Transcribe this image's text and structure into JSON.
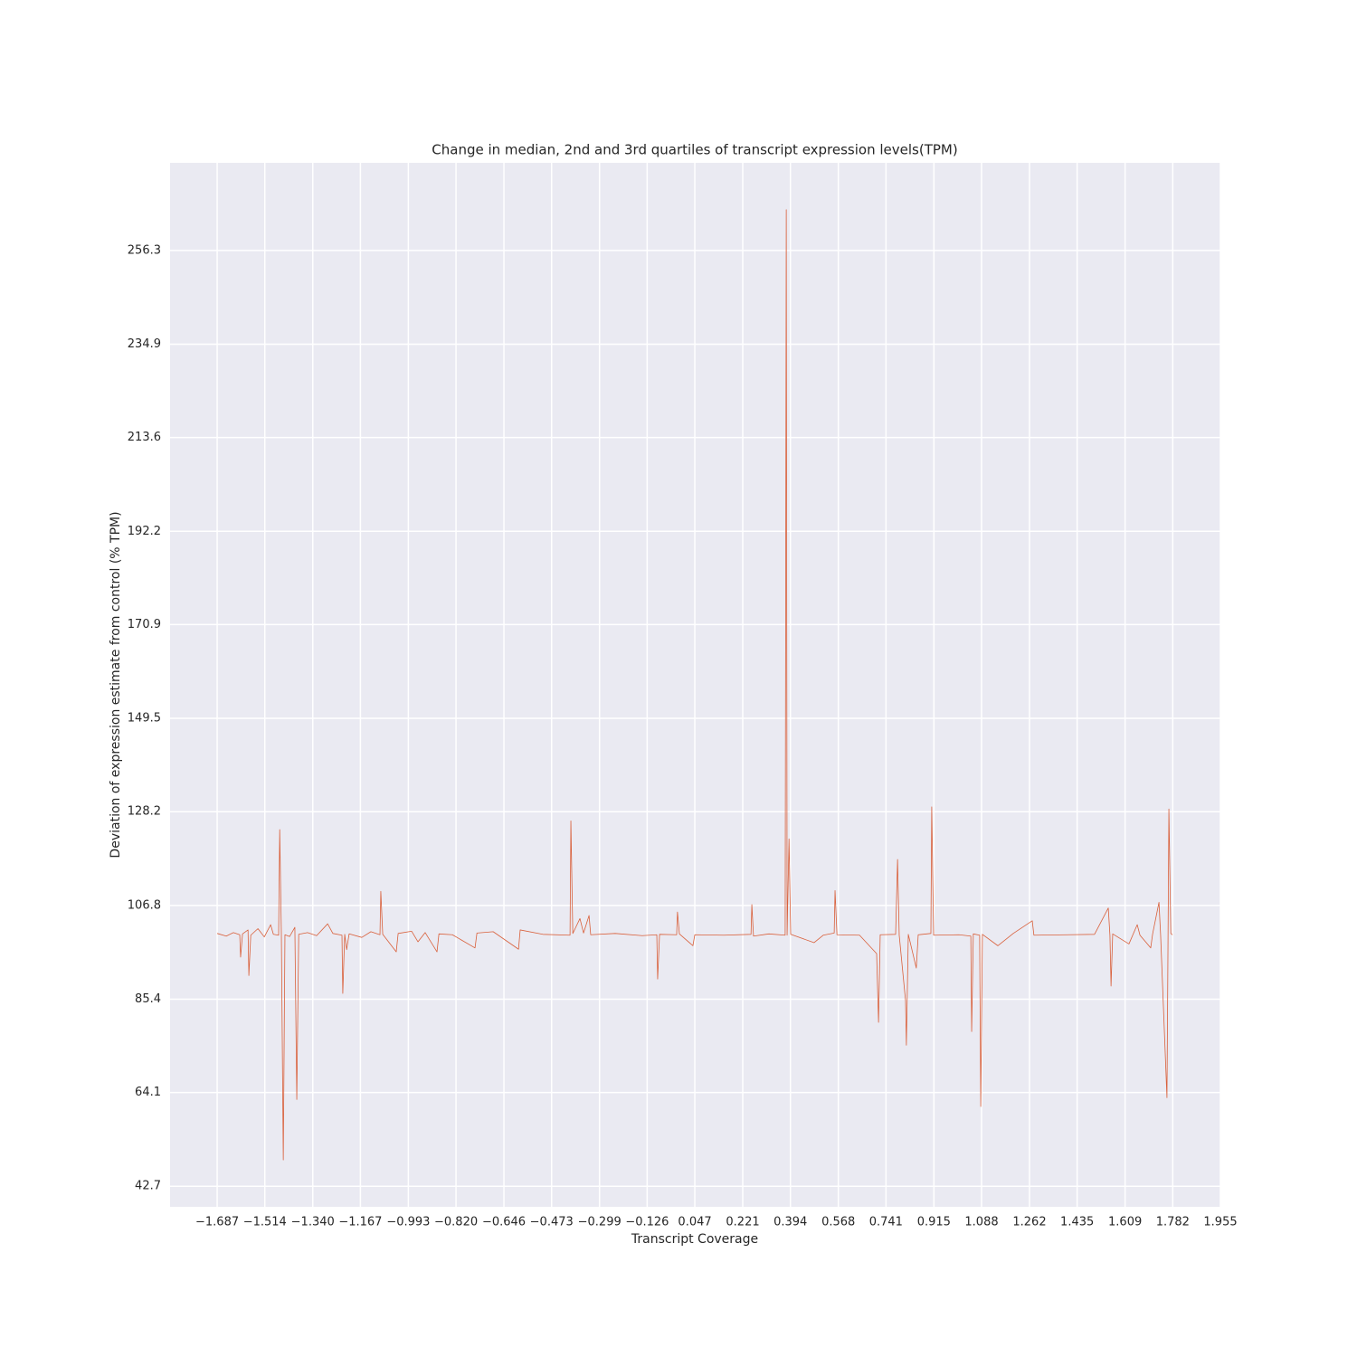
{
  "chart_data": {
    "type": "line",
    "title": "Change in median, 2nd and 3rd quartiles of transcript expression levels(TPM)",
    "x_label": "Transcript Coverage",
    "y_label": "Deviation of expression estimate from control (% TPM)",
    "grid": true,
    "xlim": [
      -1.858,
      1.955
    ],
    "ylim": [
      38.0,
      276.3
    ],
    "xticks": [
      {
        "value": -1.687,
        "label": "−1.687"
      },
      {
        "value": -1.514,
        "label": "−1.514"
      },
      {
        "value": -1.34,
        "label": "−1.340"
      },
      {
        "value": -1.167,
        "label": "−1.167"
      },
      {
        "value": -0.993,
        "label": "−0.993"
      },
      {
        "value": -0.82,
        "label": "−0.820"
      },
      {
        "value": -0.646,
        "label": "−0.646"
      },
      {
        "value": -0.473,
        "label": "−0.473"
      },
      {
        "value": -0.299,
        "label": "−0.299"
      },
      {
        "value": -0.126,
        "label": "−0.126"
      },
      0.047,
      0.221,
      0.394,
      0.568,
      0.741,
      0.915,
      1.088,
      1.262,
      1.435,
      1.609,
      1.782,
      1.955
    ],
    "yticks": [
      42.7,
      64.1,
      85.4,
      106.8,
      128.2,
      149.5,
      170.9,
      192.2,
      213.6,
      234.9,
      256.3
    ],
    "series": [
      {
        "color": "#d9603b",
        "x": [
          -1.687,
          -1.654,
          -1.628,
          -1.605,
          -1.602,
          -1.595,
          -1.575,
          -1.572,
          -1.565,
          -1.539,
          -1.516,
          -1.493,
          -1.483,
          -1.464,
          -1.46,
          -1.454,
          -1.447,
          -1.441,
          -1.424,
          -1.405,
          -1.398,
          -1.391,
          -1.359,
          -1.326,
          -1.286,
          -1.267,
          -1.234,
          -1.231,
          -1.224,
          -1.217,
          -1.208,
          -1.162,
          -1.129,
          -1.096,
          -1.093,
          -1.086,
          -1.037,
          -1.03,
          -0.981,
          -0.958,
          -0.932,
          -0.889,
          -0.882,
          -0.833,
          -0.751,
          -0.744,
          -0.685,
          -0.593,
          -0.587,
          -0.505,
          -0.406,
          -0.403,
          -0.396,
          -0.37,
          -0.357,
          -0.337,
          -0.331,
          -0.242,
          -0.144,
          -0.091,
          -0.088,
          -0.081,
          -0.019,
          -0.016,
          -0.009,
          0.04,
          0.047,
          0.152,
          0.251,
          0.254,
          0.26,
          0.316,
          0.375,
          0.379,
          0.382,
          0.389,
          0.395,
          0.48,
          0.513,
          0.553,
          0.556,
          0.563,
          0.645,
          0.707,
          0.714,
          0.72,
          0.776,
          0.783,
          0.789,
          0.812,
          0.815,
          0.822,
          0.851,
          0.858,
          0.904,
          0.907,
          0.914,
          1.006,
          1.049,
          1.052,
          1.058,
          1.081,
          1.085,
          1.091,
          1.147,
          1.203,
          1.272,
          1.278,
          1.4,
          1.498,
          1.548,
          1.554,
          1.558,
          1.564,
          1.623,
          1.653,
          1.663,
          1.702,
          1.709,
          1.732,
          1.738,
          1.761,
          1.765,
          1.768,
          1.775,
          1.781
        ],
        "values": [
          100.4,
          99.8,
          100.6,
          100.1,
          95.0,
          100.3,
          101.2,
          90.8,
          100.0,
          101.5,
          99.6,
          102.4,
          100.2,
          100.0,
          124.1,
          100.3,
          48.7,
          100.1,
          99.7,
          101.8,
          62.5,
          100.2,
          100.6,
          99.9,
          102.6,
          100.4,
          100.0,
          86.7,
          100.2,
          96.7,
          100.3,
          99.5,
          100.8,
          100.1,
          110.0,
          100.2,
          96.2,
          100.4,
          100.9,
          98.5,
          100.6,
          96.2,
          100.3,
          100.1,
          97.1,
          100.5,
          100.8,
          96.8,
          101.2,
          100.2,
          100.0,
          126.1,
          100.4,
          103.8,
          100.5,
          104.5,
          100.1,
          100.4,
          99.9,
          100.1,
          90.0,
          100.2,
          100.1,
          105.3,
          100.3,
          97.6,
          100.1,
          100.0,
          100.2,
          107.0,
          99.8,
          100.3,
          100.0,
          265.6,
          100.0,
          122.0,
          100.2,
          98.3,
          100.0,
          100.5,
          110.2,
          100.1,
          100.0,
          95.8,
          80.1,
          100.1,
          100.2,
          117.3,
          100.0,
          85.1,
          74.9,
          100.2,
          92.5,
          100.1,
          100.4,
          129.3,
          100.0,
          100.1,
          99.8,
          78.0,
          100.3,
          100.0,
          60.9,
          100.2,
          97.6,
          100.4,
          103.3,
          100.0,
          100.1,
          100.2,
          106.2,
          100.0,
          88.4,
          100.3,
          98.0,
          102.4,
          100.0,
          97.1,
          100.3,
          107.5,
          100.0,
          62.9,
          100.2,
          128.8,
          100.4,
          100.1
        ]
      }
    ]
  }
}
